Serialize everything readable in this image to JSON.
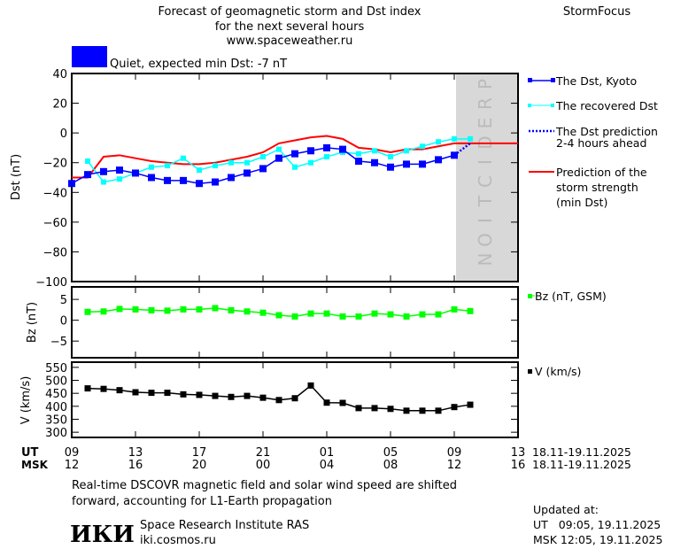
{
  "header": {
    "title_line1": "Forecast of geomagnetic storm and Dst index",
    "title_line2": "for the next several hours",
    "url": "www.spaceweather.ru",
    "brand": "StormFocus",
    "status_text": "Quiet, expected min Dst: -7 nT",
    "status_color": "#0000ff"
  },
  "prediction_label": "PREDICTION",
  "legend": {
    "dst_kyoto": "The Dst, Kyoto",
    "recovered": "The recovered Dst",
    "prediction_line1": "The Dst prediction",
    "prediction_line2": "2-4 hours ahead",
    "storm_line1": "Prediction of the",
    "storm_line2": "storm strength",
    "storm_line3": "(min Dst)",
    "bz": "Bz (nT, GSM)",
    "v": "V (km/s)"
  },
  "axes": {
    "ut_label": "UT",
    "msk_label": "MSK",
    "ut_ticks": [
      "09",
      "13",
      "17",
      "21",
      "01",
      "05",
      "09",
      "13"
    ],
    "msk_ticks": [
      "12",
      "16",
      "20",
      "00",
      "04",
      "08",
      "12",
      "16"
    ],
    "ut_date": "18.11-19.11.2025",
    "msk_date": "18.11-19.11.2025"
  },
  "footer": {
    "note_line1": "Real-time DSCOVR magnetic field and solar wind speed are shifted",
    "note_line2": "forward, accounting for L1-Earth propagation",
    "logo": "ИКИ",
    "institute": "Space Research Institute RAS",
    "site": "iki.cosmos.ru",
    "updated_label": "Updated at:",
    "updated_ut": "UT   09:05, 19.11.2025",
    "updated_msk": "MSK 12:05, 19.11.2025"
  },
  "chart_data": [
    {
      "type": "line",
      "ylabel": "Dst (nT)",
      "ylim": [
        -100,
        40
      ],
      "yticks": [
        40,
        20,
        0,
        -20,
        -40,
        -60,
        -80,
        -100
      ],
      "x": [
        "09:00",
        "10:00",
        "11:00",
        "12:00",
        "13:00",
        "14:00",
        "15:00",
        "16:00",
        "17:00",
        "18:00",
        "19:00",
        "20:00",
        "21:00",
        "22:00",
        "23:00",
        "00:00",
        "01:00",
        "02:00",
        "03:00",
        "04:00",
        "05:00",
        "06:00",
        "07:00",
        "08:00",
        "09:00",
        "10:00"
      ],
      "series": [
        {
          "name": "The Dst, Kyoto",
          "color": "#0000ff",
          "values": [
            -34,
            -28,
            -26,
            -25,
            -27,
            -30,
            -32,
            -32,
            -34,
            -33,
            -30,
            -27,
            -24,
            -17,
            -14,
            -12,
            -10,
            -11,
            -19,
            -20,
            -23,
            -21,
            -21,
            -18,
            -15,
            null
          ]
        },
        {
          "name": "The recovered Dst",
          "color": "#00ffff",
          "values": [
            null,
            -19,
            -33,
            -31,
            -27,
            -23,
            -22,
            -17,
            -25,
            -22,
            -20,
            -20,
            -16,
            -11,
            -23,
            -20,
            -16,
            -13,
            -14,
            -12,
            -16,
            -12,
            -9,
            -6,
            -4,
            -4
          ]
        },
        {
          "name": "The Dst prediction 2-4 hours ahead",
          "color": "#0000ff",
          "values": [
            null,
            null,
            null,
            null,
            null,
            null,
            null,
            null,
            null,
            null,
            null,
            null,
            null,
            null,
            null,
            null,
            null,
            null,
            null,
            null,
            null,
            null,
            null,
            null,
            -15,
            -7
          ]
        },
        {
          "name": "Prediction of the storm strength (min Dst)",
          "color": "#ff0000",
          "values": [
            -30,
            -30,
            -16,
            -15,
            -17,
            -19,
            -20,
            -21,
            -21,
            -20,
            -18,
            -16,
            -13,
            -7,
            -5,
            -3,
            -2,
            -4,
            -10,
            -11,
            -13,
            -11,
            -11,
            -9,
            -7,
            -7
          ],
          "extends_to": "13:00",
          "final_value": -7
        }
      ]
    },
    {
      "type": "line",
      "ylabel": "Bz (nT)",
      "ylim": [
        -9,
        8
      ],
      "yticks": [
        5,
        0,
        -5
      ],
      "series": [
        {
          "name": "Bz (nT, GSM)",
          "color": "#00ff00",
          "values": [
            null,
            2.0,
            2.1,
            2.7,
            2.6,
            2.4,
            2.3,
            2.6,
            2.6,
            2.9,
            2.4,
            2.1,
            1.8,
            1.2,
            0.9,
            1.6,
            1.6,
            0.9,
            0.9,
            1.6,
            1.4,
            0.9,
            1.4,
            1.4,
            2.6,
            2.2
          ]
        }
      ]
    },
    {
      "type": "line",
      "ylabel": "V (km/s)",
      "ylim": [
        280,
        570
      ],
      "yticks": [
        550,
        500,
        450,
        400,
        350,
        300
      ],
      "series": [
        {
          "name": "V (km/s)",
          "color": "#000000",
          "values": [
            null,
            469,
            467,
            462,
            454,
            452,
            452,
            446,
            444,
            440,
            436,
            440,
            433,
            424,
            431,
            480,
            414,
            413,
            393,
            393,
            390,
            383,
            383,
            383,
            397,
            406
          ]
        }
      ]
    }
  ]
}
